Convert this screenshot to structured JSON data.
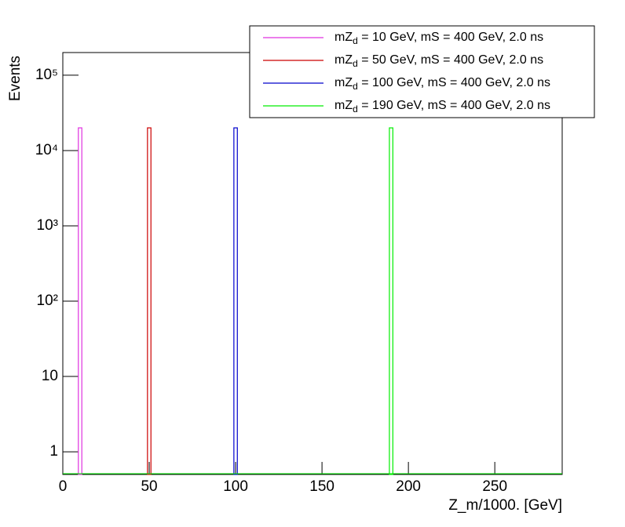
{
  "chart_data": {
    "type": "histogram",
    "y_label": "Events",
    "x_label": "Z_m/1000. [GeV]",
    "log_y": true,
    "xlim": [
      0,
      289
    ],
    "xticks": [
      0,
      50,
      100,
      150,
      200,
      250
    ],
    "ylim": [
      0.5,
      200000
    ],
    "yticks": [
      1,
      10,
      {
        "value": 100,
        "label": "10²"
      },
      {
        "value": 1000,
        "label": "10³"
      },
      {
        "value": 10000,
        "label": "10⁴"
      },
      {
        "value": 100000,
        "label": "10⁵"
      }
    ],
    "legend": "top-right",
    "series": [
      {
        "name": "mZd = 10 GeV, mS = 400 GeV, 2.0 ns",
        "color": "#e030e0",
        "bins": [
          9,
          11
        ],
        "values": [
          20000
        ]
      },
      {
        "name": "mZd = 50 GeV, mS = 400 GeV, 2.0 ns",
        "color": "#cc0000",
        "bins": [
          49,
          51
        ],
        "values": [
          20000
        ]
      },
      {
        "name": "mZd = 100 GeV, mS = 400 GeV, 2.0 ns",
        "color": "#0000cc",
        "bins": [
          99,
          101
        ],
        "values": [
          20000
        ]
      },
      {
        "name": "mZd = 190 GeV, mS = 400 GeV, 2.0 ns",
        "color": "#00ee00",
        "bins": [
          189,
          191
        ],
        "values": [
          20000
        ]
      }
    ]
  }
}
